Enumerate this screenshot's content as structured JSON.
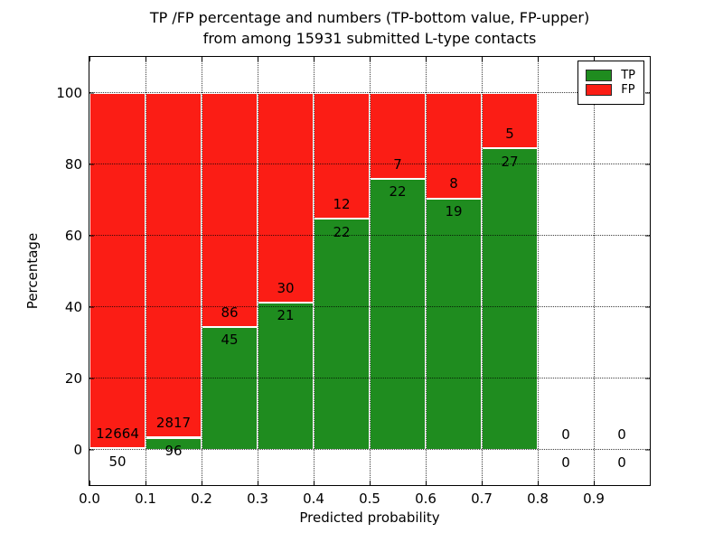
{
  "chart_data": {
    "type": "bar",
    "stacked": true,
    "title_line1": "TP /FP percentage and numbers (TP-bottom value, FP-upper)",
    "title_line2": "from among 15931 submitted L-type contacts",
    "xlabel": "Predicted probability",
    "ylabel": "Percentage",
    "xlim": [
      0.0,
      1.0
    ],
    "ylim": [
      -10,
      110
    ],
    "x_ticks": [
      {
        "value": 0.0,
        "label": "0.0"
      },
      {
        "value": 0.1,
        "label": "0.1"
      },
      {
        "value": 0.2,
        "label": "0.2"
      },
      {
        "value": 0.3,
        "label": "0.3"
      },
      {
        "value": 0.4,
        "label": "0.4"
      },
      {
        "value": 0.5,
        "label": "0.5"
      },
      {
        "value": 0.6,
        "label": "0.6"
      },
      {
        "value": 0.7,
        "label": "0.7"
      },
      {
        "value": 0.8,
        "label": "0.8"
      },
      {
        "value": 0.9,
        "label": "0.9"
      }
    ],
    "y_ticks": [
      {
        "value": 0,
        "label": "0"
      },
      {
        "value": 20,
        "label": "20"
      },
      {
        "value": 40,
        "label": "40"
      },
      {
        "value": 60,
        "label": "60"
      },
      {
        "value": 80,
        "label": "80"
      },
      {
        "value": 100,
        "label": "100"
      }
    ],
    "grid": "dotted",
    "legend_position": "upper right",
    "series": [
      {
        "name": "TP",
        "color": "#1f8c1f"
      },
      {
        "name": "FP",
        "color": "#fb1d15"
      }
    ],
    "bins": [
      {
        "range": [
          0.0,
          0.1
        ],
        "tp": 50,
        "fp": 12664
      },
      {
        "range": [
          0.1,
          0.2
        ],
        "tp": 96,
        "fp": 2817
      },
      {
        "range": [
          0.2,
          0.3
        ],
        "tp": 45,
        "fp": 86
      },
      {
        "range": [
          0.3,
          0.4
        ],
        "tp": 21,
        "fp": 30
      },
      {
        "range": [
          0.4,
          0.5
        ],
        "tp": 22,
        "fp": 12
      },
      {
        "range": [
          0.5,
          0.6
        ],
        "tp": 22,
        "fp": 7
      },
      {
        "range": [
          0.6,
          0.7
        ],
        "tp": 19,
        "fp": 8
      },
      {
        "range": [
          0.7,
          0.8
        ],
        "tp": 27,
        "fp": 5
      },
      {
        "range": [
          0.8,
          0.9
        ],
        "tp": 0,
        "fp": 0
      },
      {
        "range": [
          0.9,
          1.0
        ],
        "tp": 0,
        "fp": 0
      }
    ]
  }
}
